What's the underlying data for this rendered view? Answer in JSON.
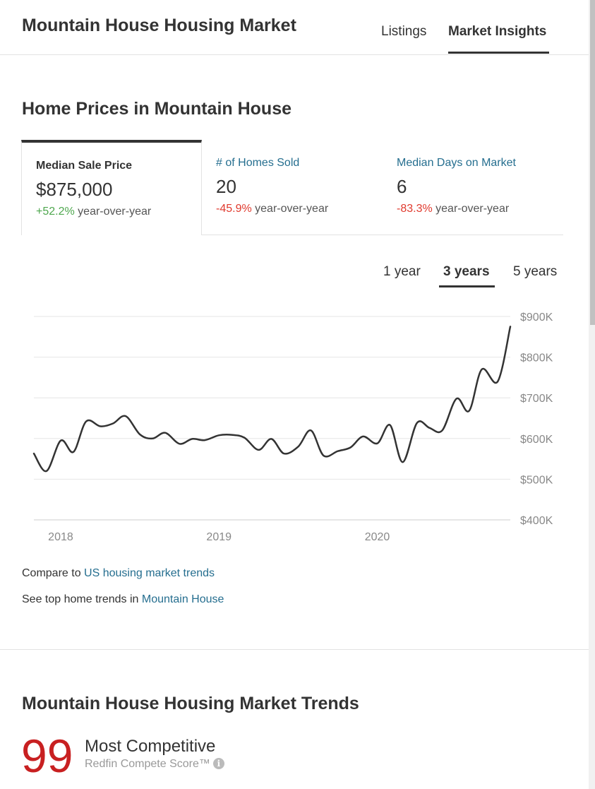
{
  "header": {
    "title": "Mountain House Housing Market",
    "tabs": [
      {
        "label": "Listings",
        "active": false
      },
      {
        "label": "Market Insights",
        "active": true
      }
    ]
  },
  "prices_section": {
    "title": "Home Prices in Mountain House",
    "stats": [
      {
        "label": "Median Sale Price",
        "value": "$875,000",
        "change": "+52.2%",
        "change_suffix": " year-over-year",
        "direction": "up",
        "active": true
      },
      {
        "label": "# of Homes Sold",
        "value": "20",
        "change": "-45.9%",
        "change_suffix": " year-over-year",
        "direction": "down",
        "active": false
      },
      {
        "label": "Median Days on Market",
        "value": "6",
        "change": "-83.3%",
        "change_suffix": " year-over-year",
        "direction": "down",
        "active": false
      }
    ],
    "ranges": [
      {
        "label": "1 year",
        "active": false
      },
      {
        "label": "3 years",
        "active": true
      },
      {
        "label": "5 years",
        "active": false
      }
    ]
  },
  "chart_data": {
    "type": "line",
    "x_ticks": [
      "2018",
      "2019",
      "2020"
    ],
    "y_ticks": [
      "$900K",
      "$800K",
      "$700K",
      "$600K",
      "$500K",
      "$400K"
    ],
    "ylim": [
      400000,
      900000
    ],
    "xlim": [
      2017.91,
      2020.92
    ],
    "grid": true,
    "series": [
      {
        "color": "#333333",
        "points": [
          [
            2017.91,
            563000
          ],
          [
            2017.99,
            520000
          ],
          [
            2018.08,
            595000
          ],
          [
            2018.16,
            567000
          ],
          [
            2018.24,
            642000
          ],
          [
            2018.33,
            630000
          ],
          [
            2018.41,
            637000
          ],
          [
            2018.49,
            655000
          ],
          [
            2018.58,
            610000
          ],
          [
            2018.66,
            600000
          ],
          [
            2018.74,
            614000
          ],
          [
            2018.83,
            587000
          ],
          [
            2018.91,
            599000
          ],
          [
            2018.99,
            596000
          ],
          [
            2019.08,
            608000
          ],
          [
            2019.16,
            609000
          ],
          [
            2019.24,
            602000
          ],
          [
            2019.33,
            572000
          ],
          [
            2019.41,
            599000
          ],
          [
            2019.49,
            563000
          ],
          [
            2019.58,
            580000
          ],
          [
            2019.66,
            620000
          ],
          [
            2019.74,
            558000
          ],
          [
            2019.83,
            569000
          ],
          [
            2019.91,
            578000
          ],
          [
            2019.99,
            605000
          ],
          [
            2020.08,
            588000
          ],
          [
            2020.16,
            633000
          ],
          [
            2020.24,
            542000
          ],
          [
            2020.33,
            638000
          ],
          [
            2020.41,
            626000
          ],
          [
            2020.49,
            620000
          ],
          [
            2020.58,
            698000
          ],
          [
            2020.66,
            668000
          ],
          [
            2020.74,
            770000
          ],
          [
            2020.84,
            740000
          ],
          [
            2020.92,
            875000
          ]
        ]
      }
    ]
  },
  "compare": {
    "line1_prefix": "Compare to ",
    "line1_link": "US housing market trends",
    "line2_prefix": "See top home trends in ",
    "line2_link": "Mountain House"
  },
  "trends_section": {
    "title": "Mountain House Housing Market Trends",
    "compete_score": "99",
    "compete_level": "Most Competitive",
    "compete_caption": "Redfin Compete Score™",
    "info_icon": "info-icon"
  },
  "colors": {
    "positive": "#4ea74e",
    "negative": "#e03a2e",
    "link": "#256e8f",
    "compete_score": "#c82021"
  }
}
